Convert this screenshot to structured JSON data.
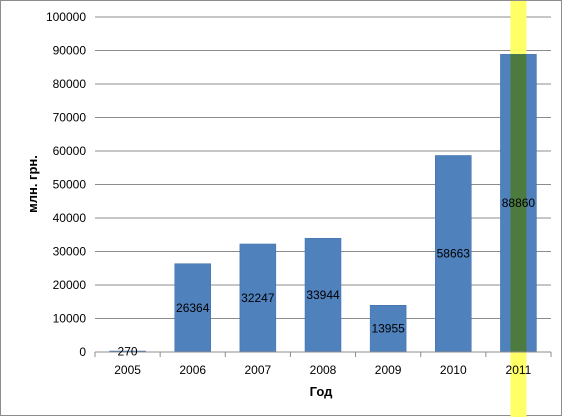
{
  "chart_data": {
    "type": "bar",
    "title": "",
    "xlabel": "Год",
    "ylabel": "млн. грн.",
    "categories": [
      "2005",
      "2006",
      "2007",
      "2008",
      "2009",
      "2010",
      "2011"
    ],
    "values": [
      270,
      26364,
      32247,
      33944,
      13955,
      58663,
      88860
    ],
    "data_labels": [
      "270",
      "26364",
      "32247",
      "33944",
      "13955",
      "58663",
      "88860"
    ],
    "ylim": [
      0,
      100000
    ],
    "yticks": [
      "0",
      "10000",
      "20000",
      "30000",
      "40000",
      "50000",
      "60000",
      "70000",
      "80000",
      "90000",
      "100000"
    ],
    "grid": true,
    "legend": "none",
    "highlighted_category": "2011",
    "colors": {
      "bar": "#4f81bd",
      "bar_border": "#3f6fa8",
      "grid": "#8c8c8c",
      "highlight_band": "#ffff66",
      "highlight_overlap": "#4c7a3f"
    }
  }
}
